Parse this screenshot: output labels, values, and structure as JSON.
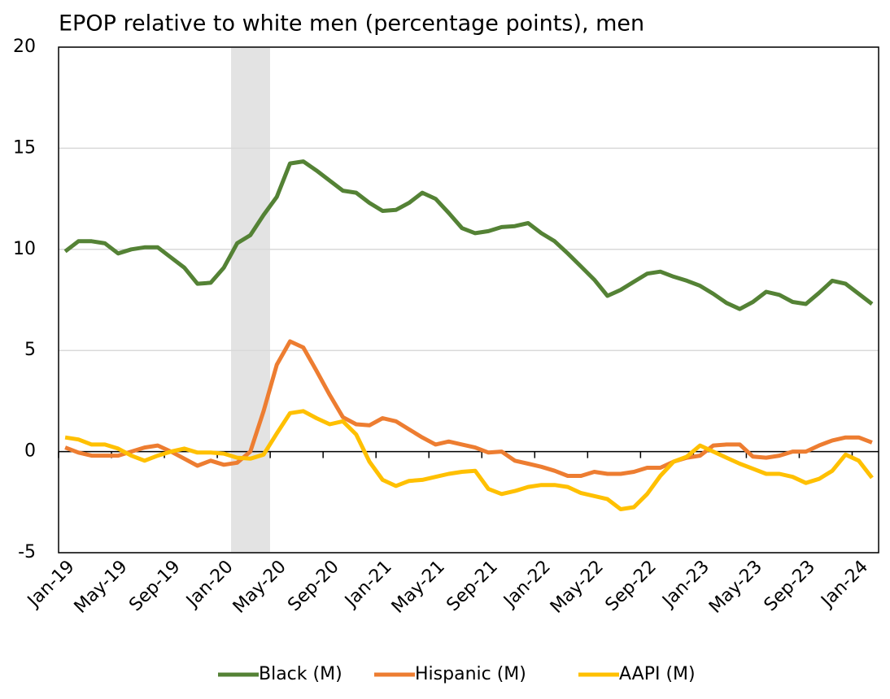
{
  "chart_data": {
    "type": "line",
    "title": "EPOP relative to white men (percentage points), men",
    "categories": [
      "Jan-19",
      null,
      null,
      null,
      "May-19",
      null,
      null,
      null,
      "Sep-19",
      null,
      null,
      null,
      "Jan-20",
      null,
      null,
      null,
      "May-20",
      null,
      null,
      null,
      "Sep-20",
      null,
      null,
      null,
      "Jan-21",
      null,
      null,
      null,
      "May-21",
      null,
      null,
      null,
      "Sep-21",
      null,
      null,
      null,
      "Jan-22",
      null,
      null,
      null,
      "May-22",
      null,
      null,
      null,
      "Sep-22",
      null,
      null,
      null,
      "Jan-23",
      null,
      null,
      null,
      "May-23",
      null,
      null,
      null,
      "Sep-23",
      null,
      null,
      null,
      "Jan-24",
      null
    ],
    "series": [
      {
        "name": "Black (M)",
        "color": "#548235",
        "values": [
          9.9,
          10.4,
          10.4,
          10.3,
          9.8,
          10.0,
          10.1,
          10.1,
          9.6,
          9.1,
          8.3,
          8.35,
          9.1,
          10.3,
          10.7,
          11.7,
          12.6,
          14.25,
          14.35,
          13.9,
          13.4,
          12.9,
          12.8,
          12.3,
          11.9,
          11.95,
          12.3,
          12.8,
          12.5,
          11.8,
          11.05,
          10.8,
          10.9,
          11.1,
          11.15,
          11.3,
          10.8,
          10.4,
          9.8,
          9.15,
          8.5,
          7.7,
          8.0,
          8.4,
          8.8,
          8.9,
          8.65,
          8.45,
          8.2,
          7.8,
          7.35,
          7.05,
          7.4,
          7.9,
          7.75,
          7.4,
          7.3,
          7.85,
          8.45,
          8.3,
          7.8,
          7.3
        ]
      },
      {
        "name": "Hispanic (M)",
        "color": "#ed7d31",
        "values": [
          0.2,
          -0.05,
          -0.2,
          -0.2,
          -0.2,
          0.0,
          0.2,
          0.3,
          0.0,
          -0.35,
          -0.7,
          -0.45,
          -0.65,
          -0.55,
          0.0,
          2.0,
          4.3,
          5.45,
          5.15,
          4.0,
          2.8,
          1.7,
          1.35,
          1.3,
          1.65,
          1.5,
          1.1,
          0.7,
          0.35,
          0.5,
          0.35,
          0.2,
          -0.05,
          0.0,
          -0.45,
          -0.6,
          -0.75,
          -0.95,
          -1.2,
          -1.2,
          -1.0,
          -1.1,
          -1.1,
          -1.0,
          -0.8,
          -0.8,
          -0.5,
          -0.3,
          -0.2,
          0.3,
          0.35,
          0.35,
          -0.25,
          -0.3,
          -0.2,
          0.0,
          0.0,
          0.3,
          0.55,
          0.7,
          0.7,
          0.45
        ]
      },
      {
        "name": "AAPI (M)",
        "color": "#ffc000",
        "values": [
          0.7,
          0.6,
          0.35,
          0.35,
          0.15,
          -0.2,
          -0.45,
          -0.2,
          0.0,
          0.15,
          -0.05,
          -0.05,
          -0.1,
          -0.3,
          -0.35,
          -0.15,
          0.9,
          1.9,
          2.0,
          1.65,
          1.35,
          1.5,
          0.85,
          -0.5,
          -1.4,
          -1.7,
          -1.45,
          -1.4,
          -1.25,
          -1.1,
          -1.0,
          -0.95,
          -1.85,
          -2.1,
          -1.95,
          -1.75,
          -1.65,
          -1.65,
          -1.75,
          -2.05,
          -2.2,
          -2.35,
          -2.85,
          -2.75,
          -2.1,
          -1.2,
          -0.5,
          -0.25,
          0.3,
          0.0,
          -0.3,
          -0.6,
          -0.85,
          -1.1,
          -1.1,
          -1.25,
          -1.55,
          -1.35,
          -0.95,
          -0.15,
          -0.45,
          -1.3
        ]
      }
    ],
    "ylim": [
      -5,
      20
    ],
    "yticks": [
      -5,
      0,
      5,
      10,
      15,
      20
    ],
    "grid": true,
    "legend": "bottom"
  }
}
